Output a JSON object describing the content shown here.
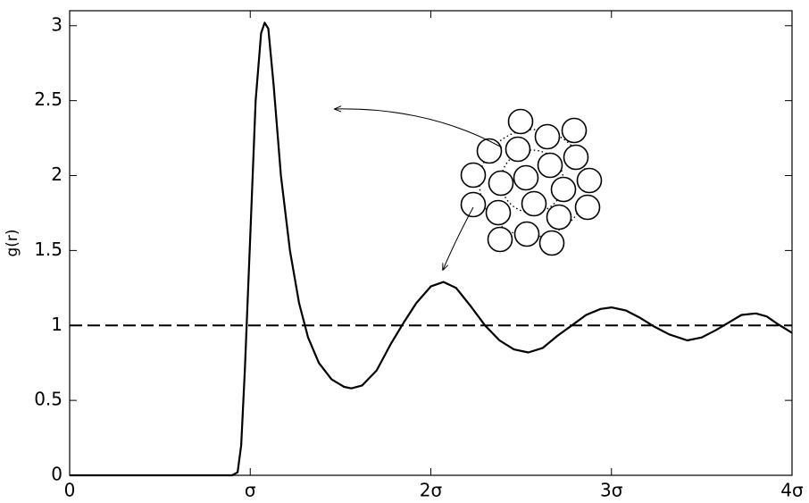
{
  "chart_data": {
    "type": "line",
    "ylabel": "g(r)",
    "x": [
      0,
      0.5,
      0.9,
      0.93,
      0.95,
      0.97,
      1.0,
      1.03,
      1.06,
      1.08,
      1.1,
      1.13,
      1.17,
      1.22,
      1.27,
      1.32,
      1.38,
      1.45,
      1.52,
      1.56,
      1.62,
      1.7,
      1.78,
      1.85,
      1.92,
      2.0,
      2.07,
      2.14,
      2.22,
      2.3,
      2.38,
      2.46,
      2.54,
      2.62,
      2.7,
      2.78,
      2.86,
      2.94,
      3.0,
      3.08,
      3.16,
      3.24,
      3.32,
      3.42,
      3.5,
      3.58,
      3.65,
      3.72,
      3.8,
      3.86,
      3.92,
      4.0
    ],
    "values": [
      0,
      0,
      0,
      0.02,
      0.2,
      0.7,
      1.6,
      2.5,
      2.95,
      3.02,
      2.98,
      2.6,
      2.0,
      1.5,
      1.15,
      0.92,
      0.75,
      0.64,
      0.59,
      0.58,
      0.6,
      0.7,
      0.88,
      1.02,
      1.15,
      1.26,
      1.29,
      1.25,
      1.13,
      1.0,
      0.9,
      0.84,
      0.82,
      0.85,
      0.93,
      1.0,
      1.07,
      1.11,
      1.12,
      1.1,
      1.05,
      0.99,
      0.94,
      0.9,
      0.92,
      0.97,
      1.02,
      1.07,
      1.08,
      1.06,
      1.01,
      0.95
    ],
    "color": "#000000",
    "reference_line": 1,
    "xlim": [
      0,
      4
    ],
    "xticks": [
      0,
      {
        "value": 1,
        "label": "σ"
      },
      {
        "value": 2,
        "label": "2σ"
      },
      {
        "value": 3,
        "label": "3σ"
      },
      {
        "value": 4,
        "label": "4σ"
      }
    ],
    "ylim": [
      0,
      3.1
    ],
    "yticks": [
      0,
      0.5,
      1,
      1.5,
      2,
      2.5,
      3
    ]
  }
}
